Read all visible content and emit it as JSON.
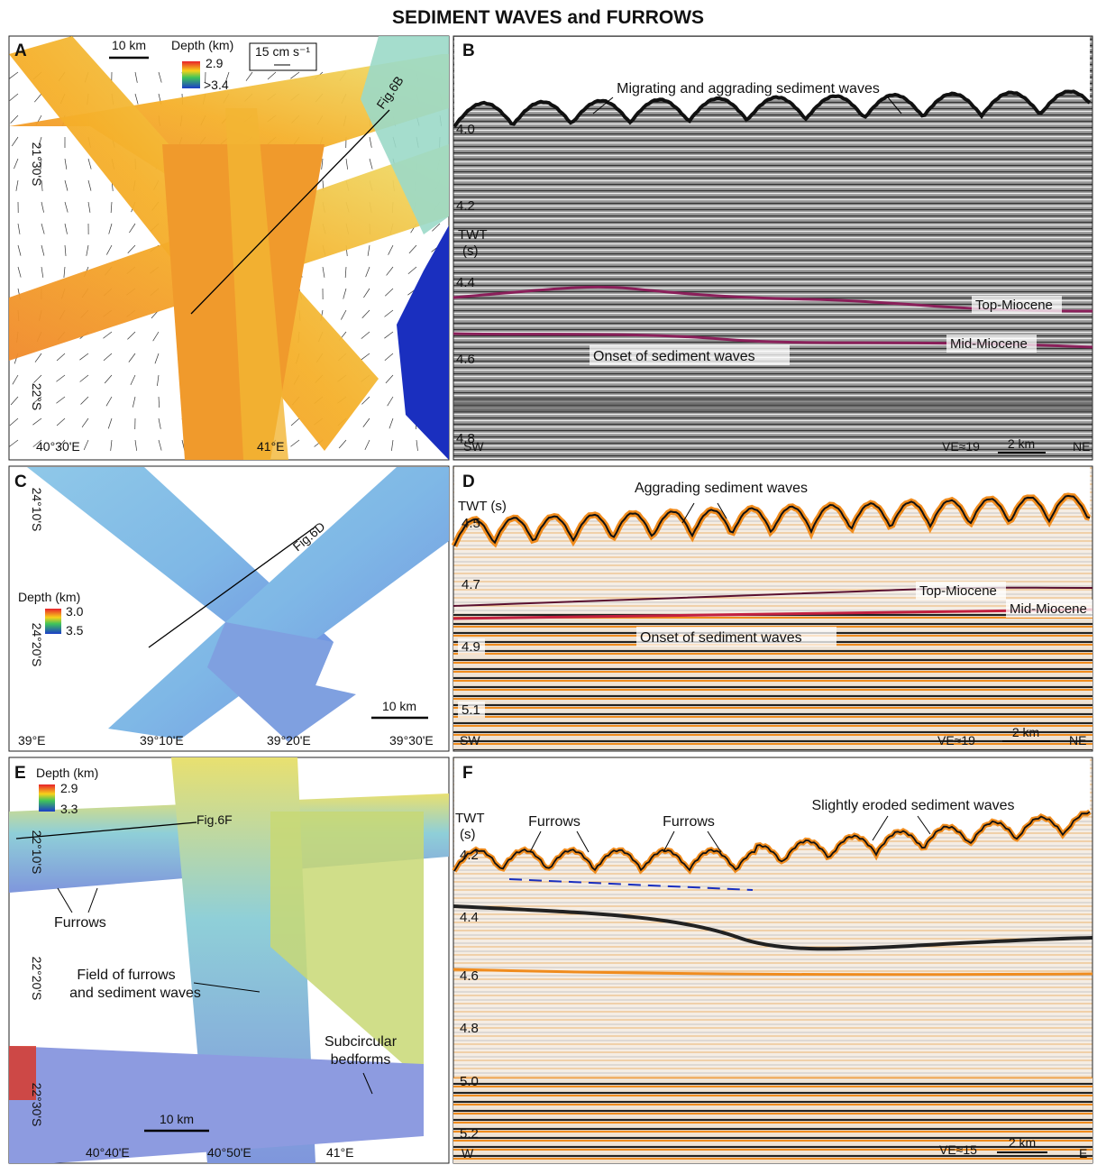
{
  "title": "SEDIMENT WAVES and FURROWS",
  "panels": [
    {
      "label": "A",
      "scale": "10 km",
      "legend_title": "Depth (km)",
      "legend_top": "2.9",
      "legend_bottom": ">3.4",
      "current_scale": "15 cm s⁻¹",
      "profile": "Fig.6B",
      "lat_labels": [
        "21°30'S",
        "22°S"
      ],
      "lon_labels": [
        "40°30'E",
        "41°E"
      ]
    },
    {
      "label": "B",
      "annotation": "Migrating and aggrading sediment waves",
      "axis_label": [
        "TWT",
        "(s)"
      ],
      "yticks": [
        "4.0",
        "4.2",
        "4.4",
        "4.6",
        "4.8"
      ],
      "horizons": [
        "Top-Miocene",
        "Mid-Miocene"
      ],
      "onset": "Onset of sediment waves",
      "left_end": "SW",
      "right_end": "NE",
      "ve": "VE≈19",
      "scale": "2 km"
    },
    {
      "label": "C",
      "profile": "Fig.6D",
      "legend_title": "Depth (km)",
      "legend_top": "3.0",
      "legend_bottom": "3.5",
      "lat_labels": [
        "24°10'S",
        "24°20'S"
      ],
      "lon_labels": [
        "39°E",
        "39°10'E",
        "39°20'E",
        "39°30'E"
      ],
      "scale": "10 km"
    },
    {
      "label": "D",
      "annotation": "Aggrading sediment waves",
      "axis_label": "TWT (s)",
      "yticks": [
        "4.5",
        "4.7",
        "4.9",
        "5.1"
      ],
      "horizons": [
        "Top-Miocene",
        "Mid-Miocene"
      ],
      "onset": "Onset of sediment waves",
      "left_end": "SW",
      "right_end": "NE",
      "ve": "VE≈19",
      "scale": "2 km"
    },
    {
      "label": "E",
      "legend_title": "Depth (km)",
      "legend_top": "2.9",
      "legend_bottom": "3.3",
      "profile": "Fig.6F",
      "lat_labels": [
        "22°10'S",
        "22°20'S",
        "22°30'S"
      ],
      "lon_labels": [
        "40°40'E",
        "40°50'E",
        "41°E"
      ],
      "furrows": "Furrows",
      "field": [
        "Field of furrows",
        "and sediment waves"
      ],
      "subcircular": [
        "Subcircular",
        "bedforms"
      ],
      "scale": "10 km"
    },
    {
      "label": "F",
      "axis_label": [
        "TWT",
        "(s)"
      ],
      "yticks": [
        "4.2",
        "4.4",
        "4.6",
        "4.8",
        "5.0",
        "5.2"
      ],
      "furrows_1": "Furrows",
      "furrows_2": "Furrows",
      "eroded": "Slightly eroded sediment waves",
      "left_end": "W",
      "right_end": "E",
      "ve": "VE≈15",
      "scale": "2 km"
    }
  ]
}
